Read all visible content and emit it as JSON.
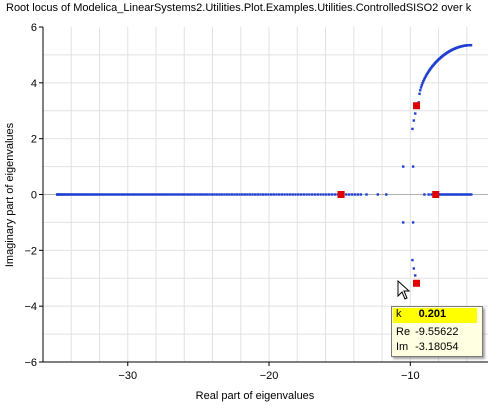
{
  "title": "Root locus of Modelica_LinearSystems2.Utilities.Plot.Examples.Utilities.ControlledSISO2 over k",
  "chart_data": {
    "type": "scatter",
    "title": "Root locus of Modelica_LinearSystems2.Utilities.Plot.Examples.Utilities.ControlledSISO2 over k",
    "xlabel": "Real part of eigenvalues",
    "ylabel": "Imaginary part of eigenvalues",
    "xlim": [
      -36,
      -4.5
    ],
    "ylim": [
      -6,
      6
    ],
    "x_ticks": [
      -30,
      -20,
      -10
    ],
    "y_ticks": [
      -6,
      -4,
      -2,
      0,
      2,
      4,
      6
    ],
    "grid": true,
    "colors": {
      "locus": "#1f3fd0",
      "marker": "#e00000",
      "grid": "#e2e2e2"
    },
    "marked_points": [
      {
        "x": -14.9,
        "y": 0
      },
      {
        "x": -8.2,
        "y": 0
      },
      {
        "x": -9.56,
        "y": 3.18
      },
      {
        "x": -9.56,
        "y": -3.18
      }
    ]
  },
  "tooltip": {
    "k_label": "k",
    "k_value": "0.201",
    "re_label": "Re",
    "re_value": "-9.55622",
    "im_label": "Im",
    "im_value": "-3.18054"
  },
  "cursor": "arrow-cursor-icon"
}
